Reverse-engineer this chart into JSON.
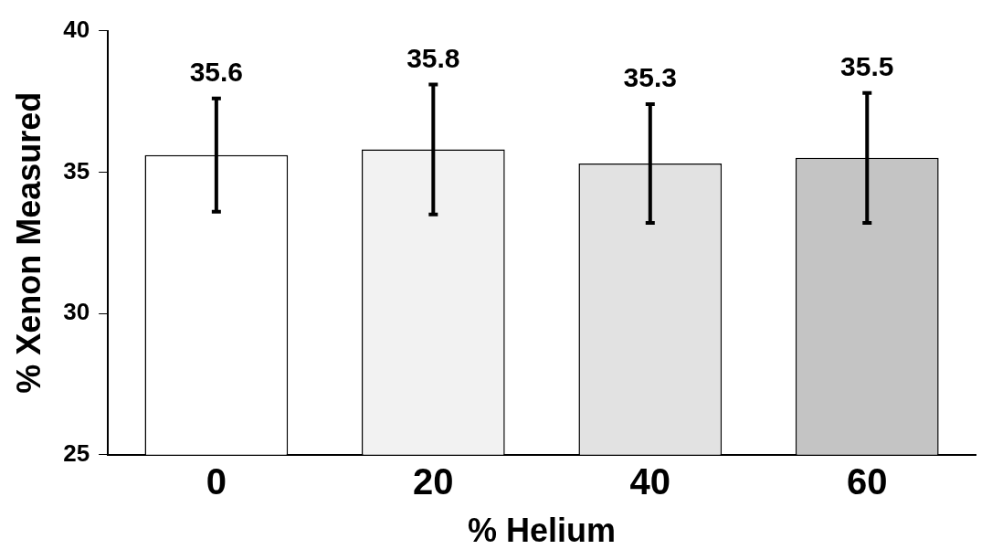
{
  "chart_data": {
    "type": "bar",
    "xlabel": "% Helium",
    "ylabel": "% Xenon Measured",
    "categories": [
      "0",
      "20",
      "40",
      "60"
    ],
    "values": [
      35.6,
      35.8,
      35.3,
      35.5
    ],
    "errors": [
      2.0,
      2.3,
      2.1,
      2.3
    ],
    "colors": [
      "#ffffff",
      "#f2f2f2",
      "#e2e2e2",
      "#c4c4c4"
    ],
    "ylim": [
      25,
      40
    ],
    "yticks": [
      25,
      30,
      35,
      40
    ],
    "grid": false,
    "legend": false,
    "data_labels": true
  }
}
